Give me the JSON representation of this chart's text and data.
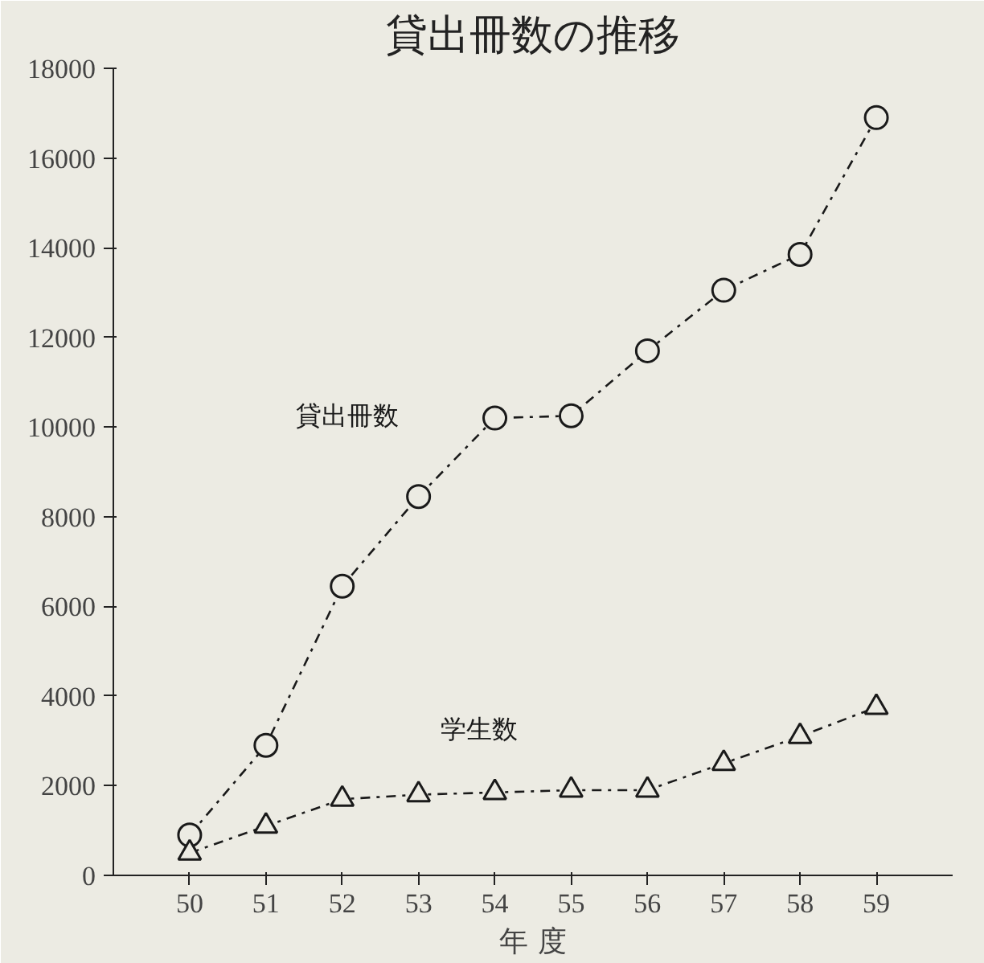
{
  "chart_data": {
    "type": "line",
    "title": "貸出冊数の推移",
    "xlabel": "年 度",
    "x": [
      50,
      51,
      52,
      53,
      54,
      55,
      56,
      57,
      58,
      59
    ],
    "series": [
      {
        "name": "貸出冊数",
        "color": "#1a1a1a",
        "marker": "circle",
        "values": [
          900,
          2900,
          6450,
          8450,
          10200,
          10250,
          11700,
          13050,
          13850,
          16900
        ]
      },
      {
        "name": "学生数",
        "color": "#1a1a1a",
        "marker": "triangle",
        "values": [
          500,
          1100,
          1700,
          1800,
          1850,
          1900,
          1900,
          2500,
          3100,
          3750
        ]
      }
    ],
    "xlim": [
      49,
      60
    ],
    "xticks": [
      50,
      51,
      52,
      53,
      54,
      55,
      56,
      57,
      58,
      59
    ],
    "ylim": [
      0,
      18000
    ],
    "yticks": [
      0,
      2000,
      4000,
      6000,
      8000,
      10000,
      12000,
      14000,
      16000,
      18000
    ],
    "grid": false,
    "line_style": "dashed"
  }
}
